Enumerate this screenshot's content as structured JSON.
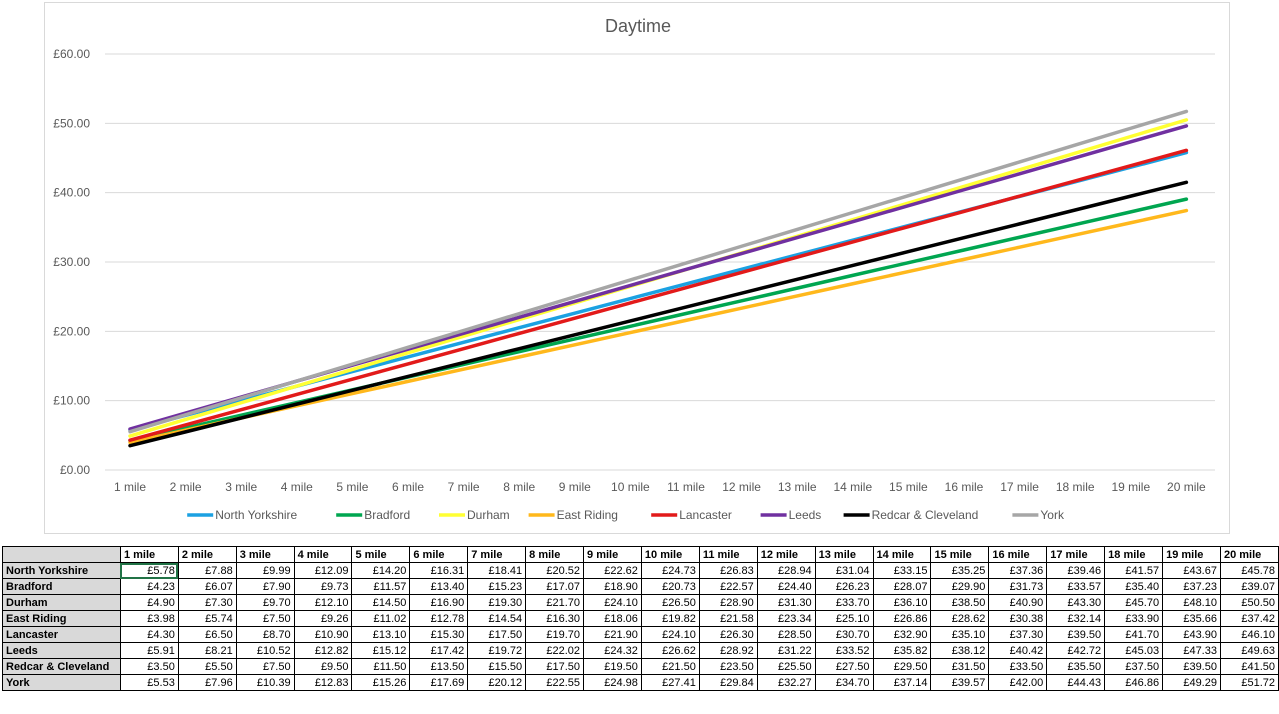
{
  "chart_data": {
    "type": "line",
    "title": "Daytime",
    "categories": [
      "1 mile",
      "2 mile",
      "3 mile",
      "4 mile",
      "5 mile",
      "6 mile",
      "7 mile",
      "8 mile",
      "9 mile",
      "10 mile",
      "11 mile",
      "12 mile",
      "13 mile",
      "14 mile",
      "15 mile",
      "16 mile",
      "17 mile",
      "18 mile",
      "19 mile",
      "20 mile"
    ],
    "y_ticks": [
      "£0.00",
      "£10.00",
      "£20.00",
      "£30.00",
      "£40.00",
      "£50.00",
      "£60.00"
    ],
    "ylim": [
      0,
      60
    ],
    "grid": true,
    "legend_position": "bottom",
    "series": [
      {
        "name": "North Yorkshire",
        "color": "#1ba1e2",
        "values": [
          5.78,
          7.88,
          9.99,
          12.09,
          14.2,
          16.31,
          18.41,
          20.52,
          22.62,
          24.73,
          26.83,
          28.94,
          31.04,
          33.15,
          35.25,
          37.36,
          39.46,
          41.57,
          43.67,
          45.78
        ]
      },
      {
        "name": "Bradford",
        "color": "#00a650",
        "values": [
          4.23,
          6.07,
          7.9,
          9.73,
          11.57,
          13.4,
          15.23,
          17.07,
          18.9,
          20.73,
          22.57,
          24.4,
          26.23,
          28.07,
          29.9,
          31.73,
          33.57,
          35.4,
          37.23,
          39.07
        ]
      },
      {
        "name": "Durham",
        "color": "#ffff33",
        "values": [
          4.9,
          7.3,
          9.7,
          12.1,
          14.5,
          16.9,
          19.3,
          21.7,
          24.1,
          26.5,
          28.9,
          31.3,
          33.7,
          36.1,
          38.5,
          40.9,
          43.3,
          45.7,
          48.1,
          50.5
        ]
      },
      {
        "name": "East Riding",
        "color": "#ffb81c",
        "values": [
          3.98,
          5.74,
          7.5,
          9.26,
          11.02,
          12.78,
          14.54,
          16.3,
          18.06,
          19.82,
          21.58,
          23.34,
          25.1,
          26.86,
          28.62,
          30.38,
          32.14,
          33.9,
          35.66,
          37.42
        ]
      },
      {
        "name": "Lancaster",
        "color": "#e21a1a",
        "values": [
          4.3,
          6.5,
          8.7,
          10.9,
          13.1,
          15.3,
          17.5,
          19.7,
          21.9,
          24.1,
          26.3,
          28.5,
          30.7,
          32.9,
          35.1,
          37.3,
          39.5,
          41.7,
          43.9,
          46.1
        ]
      },
      {
        "name": "Leeds",
        "color": "#7030a0",
        "values": [
          5.91,
          8.21,
          10.52,
          12.82,
          15.12,
          17.42,
          19.72,
          22.02,
          24.32,
          26.62,
          28.92,
          31.22,
          33.52,
          35.82,
          38.12,
          40.42,
          42.72,
          45.03,
          47.33,
          49.63
        ]
      },
      {
        "name": "Redcar & Cleveland",
        "color": "#000000",
        "values": [
          3.5,
          5.5,
          7.5,
          9.5,
          11.5,
          13.5,
          15.5,
          17.5,
          19.5,
          21.5,
          23.5,
          25.5,
          27.5,
          29.5,
          31.5,
          33.5,
          35.5,
          37.5,
          39.5,
          41.5
        ]
      },
      {
        "name": "York",
        "color": "#a6a6a6",
        "values": [
          5.53,
          7.96,
          10.39,
          12.83,
          15.26,
          17.69,
          20.12,
          22.55,
          24.98,
          27.41,
          29.84,
          32.27,
          34.7,
          37.14,
          39.57,
          42.0,
          44.43,
          46.86,
          49.29,
          51.72
        ]
      }
    ]
  },
  "table": {
    "headers": [
      "1 mile",
      "2 mile",
      "3 mile",
      "4 mile",
      "5 mile",
      "6 mile",
      "7 mile",
      "8 mile",
      "9 mile",
      "10 mile",
      "11 mile",
      "12 mile",
      "13 mile",
      "14 mile",
      "15 mile",
      "16 mile",
      "17 mile",
      "18 mile",
      "19 mile",
      "20 mile"
    ],
    "rows": [
      {
        "label": "North Yorkshire",
        "cells": [
          "£5.78",
          "£7.88",
          "£9.99",
          "£12.09",
          "£14.20",
          "£16.31",
          "£18.41",
          "£20.52",
          "£22.62",
          "£24.73",
          "£26.83",
          "£28.94",
          "£31.04",
          "£33.15",
          "£35.25",
          "£37.36",
          "£39.46",
          "£41.57",
          "£43.67",
          "£45.78"
        ]
      },
      {
        "label": "Bradford",
        "cells": [
          "£4.23",
          "£6.07",
          "£7.90",
          "£9.73",
          "£11.57",
          "£13.40",
          "£15.23",
          "£17.07",
          "£18.90",
          "£20.73",
          "£22.57",
          "£24.40",
          "£26.23",
          "£28.07",
          "£29.90",
          "£31.73",
          "£33.57",
          "£35.40",
          "£37.23",
          "£39.07"
        ]
      },
      {
        "label": "Durham",
        "cells": [
          "£4.90",
          "£7.30",
          "£9.70",
          "£12.10",
          "£14.50",
          "£16.90",
          "£19.30",
          "£21.70",
          "£24.10",
          "£26.50",
          "£28.90",
          "£31.30",
          "£33.70",
          "£36.10",
          "£38.50",
          "£40.90",
          "£43.30",
          "£45.70",
          "£48.10",
          "£50.50"
        ]
      },
      {
        "label": "East Riding",
        "cells": [
          "£3.98",
          "£5.74",
          "£7.50",
          "£9.26",
          "£11.02",
          "£12.78",
          "£14.54",
          "£16.30",
          "£18.06",
          "£19.82",
          "£21.58",
          "£23.34",
          "£25.10",
          "£26.86",
          "£28.62",
          "£30.38",
          "£32.14",
          "£33.90",
          "£35.66",
          "£37.42"
        ]
      },
      {
        "label": "Lancaster",
        "cells": [
          "£4.30",
          "£6.50",
          "£8.70",
          "£10.90",
          "£13.10",
          "£15.30",
          "£17.50",
          "£19.70",
          "£21.90",
          "£24.10",
          "£26.30",
          "£28.50",
          "£30.70",
          "£32.90",
          "£35.10",
          "£37.30",
          "£39.50",
          "£41.70",
          "£43.90",
          "£46.10"
        ]
      },
      {
        "label": "Leeds",
        "cells": [
          "£5.91",
          "£8.21",
          "£10.52",
          "£12.82",
          "£15.12",
          "£17.42",
          "£19.72",
          "£22.02",
          "£24.32",
          "£26.62",
          "£28.92",
          "£31.22",
          "£33.52",
          "£35.82",
          "£38.12",
          "£40.42",
          "£42.72",
          "£45.03",
          "£47.33",
          "£49.63"
        ]
      },
      {
        "label": "Redcar & Cleveland",
        "cells": [
          "£3.50",
          "£5.50",
          "£7.50",
          "£9.50",
          "£11.50",
          "£13.50",
          "£15.50",
          "£17.50",
          "£19.50",
          "£21.50",
          "£23.50",
          "£25.50",
          "£27.50",
          "£29.50",
          "£31.50",
          "£33.50",
          "£35.50",
          "£37.50",
          "£39.50",
          "£41.50"
        ]
      },
      {
        "label": "York",
        "cells": [
          "£5.53",
          "£7.96",
          "£10.39",
          "£12.83",
          "£15.26",
          "£17.69",
          "£20.12",
          "£22.55",
          "£24.98",
          "£27.41",
          "£29.84",
          "£32.27",
          "£34.70",
          "£37.14",
          "£39.57",
          "£42.00",
          "£44.43",
          "£46.86",
          "£49.29",
          "£51.72"
        ]
      }
    ]
  }
}
